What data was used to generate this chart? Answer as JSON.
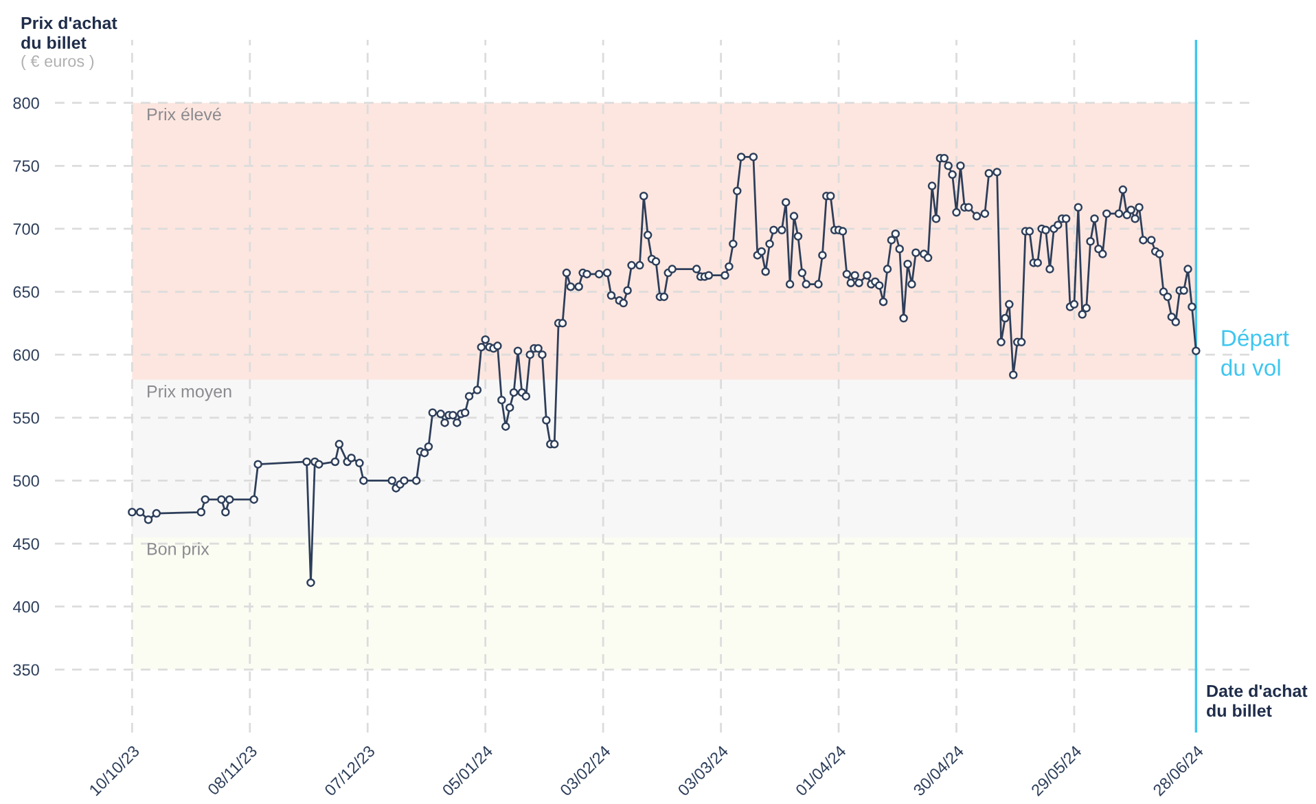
{
  "chart_data": {
    "type": "line",
    "ylabel": "Prix d'achat\ndu billet",
    "xlabel": "Date d'achat\ndu billet",
    "annotations": [
      "( € euros )"
    ],
    "xlim": [
      "2023-09-21",
      "2024-07-13"
    ],
    "ylim": [
      300,
      850
    ],
    "yticks": [
      350,
      400,
      450,
      500,
      550,
      600,
      650,
      700,
      750,
      800
    ],
    "xticks": [
      {
        "value": "2023-10-10",
        "label": "10/10/23"
      },
      {
        "value": "2023-11-08",
        "label": "08/11/23"
      },
      {
        "value": "2023-12-07",
        "label": "07/12/23"
      },
      {
        "value": "2024-01-05",
        "label": "05/01/24"
      },
      {
        "value": "2024-02-03",
        "label": "03/02/24"
      },
      {
        "value": "2024-03-03",
        "label": "03/03/24"
      },
      {
        "value": "2024-04-01",
        "label": "01/04/24"
      },
      {
        "value": "2024-04-30",
        "label": "30/04/24"
      },
      {
        "value": "2024-05-29",
        "label": "29/05/24"
      },
      {
        "value": "2024-06-28",
        "label": "28/06/24"
      }
    ],
    "grid": true,
    "marker": "circle",
    "line_style": "solid",
    "bands": [
      {
        "axis": "y",
        "from": 580,
        "to": 800,
        "label": "Prix élevé",
        "color": "#fde6df"
      },
      {
        "axis": "y",
        "from": 455,
        "to": 580,
        "label": "Prix moyen",
        "color": "#f7f7f7"
      },
      {
        "axis": "y",
        "from": 350,
        "to": 455,
        "label": "Bon prix",
        "color": "#fbfcf2"
      }
    ],
    "ref_lines": [
      {
        "axis": "x",
        "value": "2024-06-28",
        "label": "Départ\ndu vol",
        "color": "#3ec6ef",
        "line_style": "solid"
      }
    ],
    "series": [
      {
        "color": "#2d3e5a",
        "x": [
          "2023-10-10",
          "2023-10-12",
          "2023-10-14",
          "2023-10-16",
          "2023-10-27",
          "2023-10-28",
          "2023-11-01",
          "2023-11-02",
          "2023-11-03",
          "2023-11-09",
          "2023-11-10",
          "2023-11-22",
          "2023-11-23",
          "2023-11-24",
          "2023-11-25",
          "2023-11-29",
          "2023-11-30",
          "2023-12-02",
          "2023-12-03",
          "2023-12-05",
          "2023-12-06",
          "2023-12-13",
          "2023-12-14",
          "2023-12-15",
          "2023-12-16",
          "2023-12-19",
          "2023-12-20",
          "2023-12-21",
          "2023-12-22",
          "2023-12-23",
          "2023-12-25",
          "2023-12-26",
          "2023-12-27",
          "2023-12-28",
          "2023-12-29",
          "2023-12-30",
          "2023-12-31",
          "2024-01-01",
          "2024-01-03",
          "2024-01-04",
          "2024-01-05",
          "2024-01-06",
          "2024-01-07",
          "2024-01-08",
          "2024-01-09",
          "2024-01-10",
          "2024-01-11",
          "2024-01-12",
          "2024-01-13",
          "2024-01-14",
          "2024-01-15",
          "2024-01-16",
          "2024-01-17",
          "2024-01-18",
          "2024-01-19",
          "2024-01-20",
          "2024-01-21",
          "2024-01-22",
          "2024-01-23",
          "2024-01-24",
          "2024-01-25",
          "2024-01-26",
          "2024-01-28",
          "2024-01-29",
          "2024-01-30",
          "2024-02-02",
          "2024-02-04",
          "2024-02-05",
          "2024-02-07",
          "2024-02-08",
          "2024-02-09",
          "2024-02-10",
          "2024-02-12",
          "2024-02-13",
          "2024-02-14",
          "2024-02-15",
          "2024-02-16",
          "2024-02-17",
          "2024-02-18",
          "2024-02-19",
          "2024-02-20",
          "2024-02-26",
          "2024-02-27",
          "2024-02-28",
          "2024-02-29",
          "2024-03-04",
          "2024-03-05",
          "2024-03-06",
          "2024-03-07",
          "2024-03-08",
          "2024-03-11",
          "2024-03-12",
          "2024-03-13",
          "2024-03-14",
          "2024-03-15",
          "2024-03-16",
          "2024-03-18",
          "2024-03-19",
          "2024-03-20",
          "2024-03-21",
          "2024-03-22",
          "2024-03-23",
          "2024-03-24",
          "2024-03-27",
          "2024-03-28",
          "2024-03-29",
          "2024-03-30",
          "2024-03-31",
          "2024-04-01",
          "2024-04-02",
          "2024-04-03",
          "2024-04-04",
          "2024-04-05",
          "2024-04-06",
          "2024-04-08",
          "2024-04-09",
          "2024-04-10",
          "2024-04-11",
          "2024-04-12",
          "2024-04-13",
          "2024-04-14",
          "2024-04-15",
          "2024-04-16",
          "2024-04-17",
          "2024-04-18",
          "2024-04-19",
          "2024-04-20",
          "2024-04-22",
          "2024-04-23",
          "2024-04-24",
          "2024-04-25",
          "2024-04-26",
          "2024-04-27",
          "2024-04-28",
          "2024-04-29",
          "2024-04-30",
          "2024-05-01",
          "2024-05-02",
          "2024-05-03",
          "2024-05-05",
          "2024-05-07",
          "2024-05-08",
          "2024-05-10",
          "2024-05-11",
          "2024-05-12",
          "2024-05-13",
          "2024-05-14",
          "2024-05-15",
          "2024-05-16",
          "2024-05-17",
          "2024-05-18",
          "2024-05-19",
          "2024-05-20",
          "2024-05-21",
          "2024-05-22",
          "2024-05-23",
          "2024-05-24",
          "2024-05-25",
          "2024-05-26",
          "2024-05-27",
          "2024-05-28",
          "2024-05-29",
          "2024-05-30",
          "2024-05-31",
          "2024-06-01",
          "2024-06-02",
          "2024-06-03",
          "2024-06-04",
          "2024-06-05",
          "2024-06-06",
          "2024-06-09",
          "2024-06-10",
          "2024-06-11",
          "2024-06-12",
          "2024-06-13",
          "2024-06-14",
          "2024-06-15",
          "2024-06-17",
          "2024-06-18",
          "2024-06-19",
          "2024-06-20",
          "2024-06-21",
          "2024-06-22",
          "2024-06-23",
          "2024-06-24",
          "2024-06-25",
          "2024-06-26",
          "2024-06-27",
          "2024-06-28"
        ],
        "values": [
          475,
          475,
          469,
          474,
          475,
          485,
          485,
          475,
          485,
          485,
          513,
          515,
          419,
          515,
          513,
          515,
          529,
          515,
          518,
          514,
          500,
          500,
          494,
          497,
          500,
          500,
          523,
          522,
          527,
          554,
          553,
          546,
          552,
          552,
          546,
          553,
          554,
          567,
          572,
          606,
          612,
          606,
          605,
          607,
          564,
          543,
          558,
          570,
          603,
          570,
          567,
          600,
          605,
          605,
          600,
          548,
          529,
          529,
          625,
          625,
          665,
          654,
          654,
          665,
          664,
          664,
          665,
          647,
          643,
          641,
          651,
          671,
          671,
          726,
          695,
          676,
          674,
          646,
          646,
          665,
          668,
          668,
          662,
          662,
          663,
          663,
          670,
          688,
          730,
          757,
          757,
          679,
          682,
          666,
          688,
          699,
          699,
          721,
          656,
          710,
          694,
          665,
          656,
          656,
          679,
          726,
          726,
          699,
          699,
          698,
          664,
          657,
          663,
          657,
          663,
          656,
          658,
          655,
          642,
          668,
          691,
          696,
          684,
          629,
          672,
          656,
          681,
          680,
          677,
          734,
          708,
          756,
          756,
          750,
          743,
          713,
          750,
          717,
          717,
          710,
          712,
          744,
          745,
          610,
          629,
          640,
          584,
          610,
          610,
          698,
          698,
          673,
          673,
          700,
          699,
          668,
          700,
          703,
          708,
          708,
          638,
          640,
          717,
          632,
          637,
          690,
          708,
          684,
          680,
          712,
          712,
          731,
          711,
          715,
          708,
          717,
          691,
          691,
          682,
          680,
          650,
          646,
          630,
          626,
          651,
          651,
          668,
          638,
          603
        ]
      }
    ]
  }
}
